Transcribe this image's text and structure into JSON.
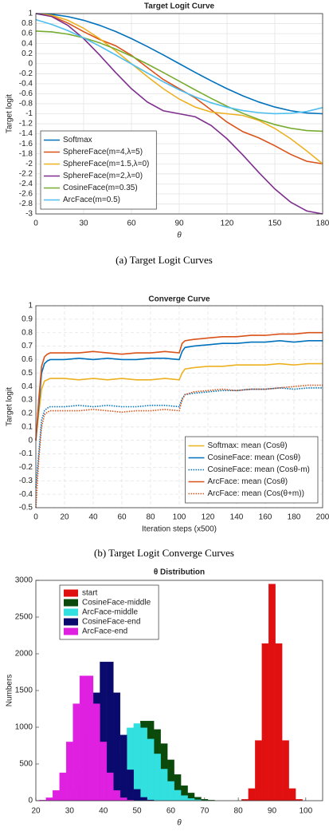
{
  "chart_data": [
    {
      "type": "line",
      "title": "Target Logit Curve",
      "xlabel": "θ",
      "ylabel": "Target logit",
      "x": [
        0,
        10,
        20,
        30,
        40,
        50,
        60,
        70,
        80,
        90,
        100,
        110,
        120,
        130,
        140,
        150,
        160,
        170,
        180
      ],
      "xlim": [
        0,
        180
      ],
      "xticks": [
        0,
        30,
        60,
        90,
        120,
        150,
        180
      ],
      "ylim": [
        -3,
        1
      ],
      "yticks": [
        -3,
        -2.8,
        -2.6,
        -2.4,
        -2.2,
        -2,
        -1.8,
        -1.6,
        -1.4,
        -1.2,
        -1,
        -0.8,
        -0.6,
        -0.4,
        -0.2,
        0,
        0.2,
        0.4,
        0.6,
        0.8,
        1
      ],
      "grid": true,
      "legend": "lower left",
      "series": [
        {
          "name": "Softmax",
          "color": "#0072BD",
          "values": [
            1,
            0.985,
            0.94,
            0.866,
            0.766,
            0.643,
            0.5,
            0.342,
            0.174,
            0,
            -0.174,
            -0.342,
            -0.5,
            -0.643,
            -0.766,
            -0.866,
            -0.94,
            -0.985,
            -1
          ]
        },
        {
          "name": "SphereFace(m=4,λ=5)",
          "color": "#D95319",
          "values": [
            1,
            0.948,
            0.812,
            0.638,
            0.482,
            0.359,
            0.167,
            -0.077,
            -0.316,
            -0.5,
            -0.684,
            -0.923,
            -1.167,
            -1.359,
            -1.482,
            -1.638,
            -1.812,
            -1.948,
            -2
          ]
        },
        {
          "name": "SphereFace(m=1.5,λ=0)",
          "color": "#EDB120",
          "values": [
            1,
            0.966,
            0.866,
            0.707,
            0.5,
            0.259,
            0,
            -0.259,
            -0.5,
            -0.707,
            -0.866,
            -0.966,
            -1,
            -1.034,
            -1.134,
            -1.293,
            -1.5,
            -1.741,
            -2
          ]
        },
        {
          "name": "SphereFace(m=2,λ=0)",
          "color": "#7E2F8E",
          "values": [
            1,
            0.94,
            0.766,
            0.5,
            0.174,
            -0.174,
            -0.5,
            -0.766,
            -0.94,
            -1,
            -1.06,
            -1.234,
            -1.5,
            -1.826,
            -2.174,
            -2.5,
            -2.766,
            -2.94,
            -3
          ]
        },
        {
          "name": "CosineFace(m=0.35)",
          "color": "#77AC30",
          "values": [
            0.65,
            0.635,
            0.59,
            0.516,
            0.416,
            0.293,
            0.15,
            -0.008,
            -0.176,
            -0.35,
            -0.524,
            -0.692,
            -0.85,
            -0.993,
            -1.116,
            -1.216,
            -1.29,
            -1.335,
            -1.35
          ]
        },
        {
          "name": "ArcFace(m=0.5)",
          "color": "#4DBEEE",
          "values": [
            0.878,
            0.783,
            0.661,
            0.515,
            0.351,
            0.176,
            -0.006,
            -0.187,
            -0.362,
            -0.522,
            -0.663,
            -0.78,
            -0.87,
            -0.937,
            -0.978,
            -0.9997,
            -0.99,
            -0.955,
            -0.878
          ]
        }
      ]
    },
    {
      "type": "line",
      "title": "Converge Curve",
      "xlabel": "Iteration steps (x500)",
      "ylabel": "Target logit",
      "x": [
        0,
        2,
        4,
        6,
        8,
        10,
        20,
        30,
        40,
        50,
        60,
        70,
        80,
        90,
        100,
        102,
        104,
        110,
        120,
        130,
        140,
        150,
        160,
        170,
        180,
        190,
        200
      ],
      "xlim": [
        0,
        200
      ],
      "xticks": [
        0,
        20,
        40,
        60,
        80,
        100,
        120,
        140,
        160,
        180,
        200
      ],
      "ylim": [
        -0.5,
        1
      ],
      "yticks": [
        -0.5,
        -0.4,
        -0.3,
        -0.2,
        -0.1,
        0,
        0.1,
        0.2,
        0.3,
        0.4,
        0.5,
        0.6,
        0.7,
        0.8,
        0.9,
        1
      ],
      "grid": true,
      "legend": "lower right",
      "series": [
        {
          "name": "Softmax: mean (Cosθ)",
          "color": "#EDB120",
          "style": "solid",
          "values": [
            0,
            0.2,
            0.38,
            0.44,
            0.45,
            0.46,
            0.46,
            0.45,
            0.46,
            0.45,
            0.46,
            0.45,
            0.45,
            0.46,
            0.45,
            0.5,
            0.53,
            0.54,
            0.55,
            0.55,
            0.56,
            0.56,
            0.56,
            0.57,
            0.56,
            0.57,
            0.57
          ]
        },
        {
          "name": "CosineFace: mean (Cosθ)",
          "color": "#0072BD",
          "style": "solid",
          "values": [
            0,
            0.25,
            0.5,
            0.57,
            0.59,
            0.6,
            0.6,
            0.61,
            0.6,
            0.61,
            0.6,
            0.6,
            0.61,
            0.61,
            0.6,
            0.66,
            0.69,
            0.7,
            0.71,
            0.72,
            0.72,
            0.73,
            0.73,
            0.74,
            0.73,
            0.74,
            0.74
          ]
        },
        {
          "name": "CosineFace: mean (Cosθ-m)",
          "color": "#0072BD",
          "style": "dotted",
          "values": [
            -0.35,
            -0.1,
            0.15,
            0.22,
            0.24,
            0.25,
            0.25,
            0.26,
            0.25,
            0.26,
            0.25,
            0.25,
            0.26,
            0.26,
            0.25,
            0.31,
            0.34,
            0.35,
            0.36,
            0.37,
            0.37,
            0.38,
            0.38,
            0.39,
            0.38,
            0.39,
            0.39
          ]
        },
        {
          "name": "ArcFace: mean (Cosθ)",
          "color": "#D95319",
          "style": "solid",
          "values": [
            0,
            0.3,
            0.55,
            0.62,
            0.64,
            0.65,
            0.65,
            0.65,
            0.66,
            0.65,
            0.64,
            0.65,
            0.65,
            0.66,
            0.65,
            0.72,
            0.74,
            0.75,
            0.76,
            0.77,
            0.77,
            0.78,
            0.78,
            0.79,
            0.79,
            0.8,
            0.8
          ]
        },
        {
          "name": "ArcFace: mean (Cos(θ+m))",
          "color": "#D95319",
          "style": "dotted",
          "values": [
            -0.5,
            -0.15,
            0.1,
            0.19,
            0.21,
            0.22,
            0.22,
            0.22,
            0.23,
            0.22,
            0.21,
            0.22,
            0.22,
            0.23,
            0.22,
            0.3,
            0.34,
            0.36,
            0.37,
            0.38,
            0.37,
            0.38,
            0.38,
            0.39,
            0.4,
            0.41,
            0.41
          ]
        }
      ]
    },
    {
      "type": "histogram",
      "title": "θ Distribution",
      "xlabel": "θ",
      "ylabel": "Numbers",
      "bins": [
        21,
        23,
        25,
        27,
        29,
        31,
        33,
        35,
        37,
        39,
        41,
        43,
        45,
        47,
        49,
        51,
        53,
        55,
        57,
        59,
        61,
        63,
        65,
        67,
        69,
        71,
        73,
        75,
        77,
        79,
        81,
        83,
        85,
        87,
        89,
        91,
        93,
        95,
        97,
        99,
        101,
        103,
        105
      ],
      "xlim": [
        20,
        105
      ],
      "xticks": [
        20,
        30,
        40,
        50,
        60,
        70,
        80,
        90,
        100
      ],
      "ylim": [
        0,
        3000
      ],
      "yticks": [
        0,
        500,
        1000,
        1500,
        2000,
        2500,
        3000
      ],
      "grid": false,
      "legend": "upper left",
      "series": [
        {
          "name": "start",
          "color": "#e01010",
          "values": [
            0,
            0,
            0,
            0,
            0,
            0,
            0,
            0,
            0,
            0,
            0,
            0,
            0,
            0,
            0,
            0,
            0,
            0,
            0,
            0,
            0,
            0,
            0,
            0,
            0,
            0,
            0,
            0,
            0,
            0,
            18,
            165,
            820,
            2140,
            2950,
            2140,
            820,
            165,
            18,
            0,
            0,
            0
          ]
        },
        {
          "name": "CosineFace-middle",
          "color": "#0b4a0b",
          "values": [
            0,
            0,
            0,
            0,
            0,
            0,
            7,
            20,
            48,
            105,
            205,
            357,
            556,
            777,
            970,
            1085,
            1085,
            970,
            777,
            556,
            357,
            205,
            105,
            48,
            20,
            7,
            0,
            0,
            0,
            0,
            0,
            0,
            0,
            0,
            0,
            0,
            0,
            0,
            0,
            0,
            0,
            0
          ]
        },
        {
          "name": "ArcFace-middle",
          "color": "#33e0e0",
          "values": [
            0,
            0,
            0,
            0,
            0,
            12,
            30,
            70,
            142,
            262,
            430,
            637,
            840,
            993,
            1050,
            993,
            840,
            637,
            430,
            262,
            142,
            70,
            30,
            12,
            4,
            0,
            0,
            0,
            0,
            0,
            0,
            0,
            0,
            0,
            0,
            0,
            0,
            0,
            0,
            0,
            0,
            0
          ]
        },
        {
          "name": "CosineFace-end",
          "color": "#0a0a6e",
          "values": [
            0,
            0,
            0,
            10,
            45,
            155,
            420,
            895,
            1470,
            1890,
            1890,
            1470,
            895,
            420,
            155,
            45,
            10,
            0,
            0,
            0,
            0,
            0,
            0,
            0,
            0,
            0,
            0,
            0,
            0,
            0,
            0,
            0,
            0,
            0,
            0,
            0,
            0,
            0,
            0,
            0,
            0,
            0
          ]
        },
        {
          "name": "ArcFace-end",
          "color": "#e020e0",
          "values": [
            9,
            40,
            140,
            380,
            800,
            1320,
            1700,
            1700,
            1320,
            800,
            380,
            140,
            40,
            9,
            0,
            0,
            0,
            0,
            0,
            0,
            0,
            0,
            0,
            0,
            0,
            0,
            0,
            0,
            0,
            0,
            0,
            0,
            0,
            0,
            0,
            0,
            0,
            0,
            0,
            0,
            0,
            0
          ]
        }
      ]
    }
  ],
  "captions": [
    "(a)  Target Logit Curves",
    "(b)  Target Logit Converge Curves"
  ]
}
